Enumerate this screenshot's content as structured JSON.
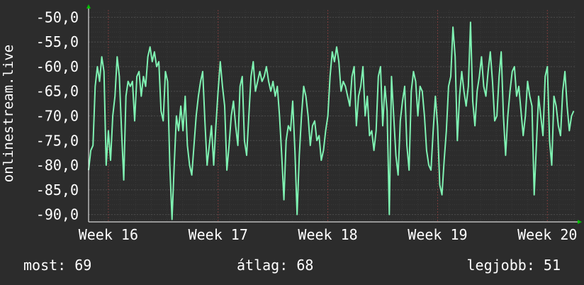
{
  "chart_data": {
    "type": "line",
    "ylabel": "onlinestream.live",
    "ylim": [
      -91.5,
      -48.5
    ],
    "yticks": [
      -50,
      -55,
      -60,
      -65,
      -70,
      -75,
      -80,
      -85,
      -90
    ],
    "ytick_labels": [
      "-50,0",
      "-55,0",
      "-60,0",
      "-65,0",
      "-70,0",
      "-75,0",
      "-80,0",
      "-85,0",
      "-90,0"
    ],
    "xlim": [
      15.82,
      20.25
    ],
    "xticks": [
      16,
      17,
      18,
      19,
      20
    ],
    "xtick_labels": [
      "Week 16",
      "Week 17",
      "Week 18",
      "Week 19",
      "Week 20"
    ],
    "grid": true,
    "colors": {
      "background": "#2c2c2c",
      "plot_background": "#2c2c2c",
      "line": "#7ff2b2",
      "grid": "#4a4a4a",
      "minor_grid": "#383838",
      "week_grid": "#7a3c3c",
      "axis": "#ffffff",
      "arrow": "#00c000",
      "text": "#ffffff"
    },
    "series": [
      {
        "values": [
          [
            15.82,
            -81
          ],
          [
            15.84,
            -77
          ],
          [
            15.86,
            -76
          ],
          [
            15.88,
            -64
          ],
          [
            15.9,
            -60
          ],
          [
            15.92,
            -63
          ],
          [
            15.94,
            -58
          ],
          [
            15.96,
            -61
          ],
          [
            15.98,
            -80
          ],
          [
            16.0,
            -73
          ],
          [
            16.02,
            -79
          ],
          [
            16.04,
            -70
          ],
          [
            16.06,
            -66
          ],
          [
            16.08,
            -58
          ],
          [
            16.1,
            -62
          ],
          [
            16.12,
            -73
          ],
          [
            16.14,
            -83
          ],
          [
            16.16,
            -66
          ],
          [
            16.18,
            -63
          ],
          [
            16.2,
            -64
          ],
          [
            16.22,
            -63
          ],
          [
            16.24,
            -71
          ],
          [
            16.26,
            -62
          ],
          [
            16.28,
            -61
          ],
          [
            16.3,
            -66
          ],
          [
            16.32,
            -62
          ],
          [
            16.34,
            -64
          ],
          [
            16.36,
            -58
          ],
          [
            16.38,
            -56
          ],
          [
            16.4,
            -59
          ],
          [
            16.42,
            -57
          ],
          [
            16.44,
            -60
          ],
          [
            16.46,
            -59
          ],
          [
            16.48,
            -69
          ],
          [
            16.5,
            -71
          ],
          [
            16.52,
            -61
          ],
          [
            16.54,
            -63
          ],
          [
            16.56,
            -80
          ],
          [
            16.58,
            -91
          ],
          [
            16.6,
            -80
          ],
          [
            16.62,
            -70
          ],
          [
            16.64,
            -73
          ],
          [
            16.66,
            -68
          ],
          [
            16.68,
            -73
          ],
          [
            16.7,
            -66
          ],
          [
            16.72,
            -76
          ],
          [
            16.74,
            -80
          ],
          [
            16.76,
            -82
          ],
          [
            16.78,
            -76
          ],
          [
            16.8,
            -70
          ],
          [
            16.82,
            -66
          ],
          [
            16.84,
            -63
          ],
          [
            16.86,
            -61
          ],
          [
            16.88,
            -71
          ],
          [
            16.9,
            -80
          ],
          [
            16.92,
            -76
          ],
          [
            16.94,
            -72
          ],
          [
            16.96,
            -80
          ],
          [
            16.98,
            -72
          ],
          [
            17.0,
            -65
          ],
          [
            17.02,
            -59
          ],
          [
            17.04,
            -64
          ],
          [
            17.06,
            -68
          ],
          [
            17.08,
            -81
          ],
          [
            17.1,
            -76
          ],
          [
            17.12,
            -70
          ],
          [
            17.14,
            -67
          ],
          [
            17.16,
            -72
          ],
          [
            17.18,
            -76
          ],
          [
            17.2,
            -64
          ],
          [
            17.22,
            -62
          ],
          [
            17.24,
            -75
          ],
          [
            17.26,
            -78
          ],
          [
            17.28,
            -70
          ],
          [
            17.3,
            -62
          ],
          [
            17.32,
            -59
          ],
          [
            17.34,
            -65
          ],
          [
            17.36,
            -63
          ],
          [
            17.38,
            -61
          ],
          [
            17.4,
            -63
          ],
          [
            17.42,
            -62
          ],
          [
            17.44,
            -60
          ],
          [
            17.46,
            -63
          ],
          [
            17.48,
            -65
          ],
          [
            17.5,
            -63
          ],
          [
            17.52,
            -66
          ],
          [
            17.54,
            -64
          ],
          [
            17.56,
            -70
          ],
          [
            17.58,
            -78
          ],
          [
            17.6,
            -87
          ],
          [
            17.62,
            -75
          ],
          [
            17.64,
            -72
          ],
          [
            17.66,
            -73
          ],
          [
            17.68,
            -67
          ],
          [
            17.7,
            -77
          ],
          [
            17.72,
            -90
          ],
          [
            17.74,
            -78
          ],
          [
            17.76,
            -70
          ],
          [
            17.78,
            -64
          ],
          [
            17.8,
            -66
          ],
          [
            17.82,
            -70
          ],
          [
            17.84,
            -76
          ],
          [
            17.86,
            -72
          ],
          [
            17.88,
            -71
          ],
          [
            17.9,
            -75
          ],
          [
            17.92,
            -74
          ],
          [
            17.94,
            -79
          ],
          [
            17.96,
            -77
          ],
          [
            17.98,
            -73
          ],
          [
            18.0,
            -70
          ],
          [
            18.02,
            -62
          ],
          [
            18.04,
            -57
          ],
          [
            18.06,
            -59
          ],
          [
            18.08,
            -56
          ],
          [
            18.1,
            -59
          ],
          [
            18.12,
            -65
          ],
          [
            18.14,
            -63
          ],
          [
            18.16,
            -64
          ],
          [
            18.18,
            -66
          ],
          [
            18.2,
            -68
          ],
          [
            18.22,
            -62
          ],
          [
            18.24,
            -60
          ],
          [
            18.26,
            -72
          ],
          [
            18.28,
            -66
          ],
          [
            18.3,
            -64
          ],
          [
            18.32,
            -60
          ],
          [
            18.34,
            -70
          ],
          [
            18.36,
            -66
          ],
          [
            18.38,
            -74
          ],
          [
            18.4,
            -73
          ],
          [
            18.42,
            -77
          ],
          [
            18.44,
            -73
          ],
          [
            18.46,
            -62
          ],
          [
            18.48,
            -60
          ],
          [
            18.5,
            -72
          ],
          [
            18.52,
            -64
          ],
          [
            18.54,
            -69
          ],
          [
            18.56,
            -90
          ],
          [
            18.58,
            -62
          ],
          [
            18.6,
            -70
          ],
          [
            18.62,
            -78
          ],
          [
            18.64,
            -82
          ],
          [
            18.66,
            -71
          ],
          [
            18.68,
            -67
          ],
          [
            18.7,
            -64
          ],
          [
            18.72,
            -76
          ],
          [
            18.74,
            -81
          ],
          [
            18.76,
            -65
          ],
          [
            18.78,
            -61
          ],
          [
            18.8,
            -63
          ],
          [
            18.82,
            -70
          ],
          [
            18.84,
            -64
          ],
          [
            18.86,
            -65
          ],
          [
            18.88,
            -70
          ],
          [
            18.9,
            -77
          ],
          [
            18.92,
            -80
          ],
          [
            18.94,
            -81
          ],
          [
            18.96,
            -73
          ],
          [
            18.98,
            -66
          ],
          [
            19.0,
            -72
          ],
          [
            19.02,
            -84
          ],
          [
            19.04,
            -86
          ],
          [
            19.06,
            -79
          ],
          [
            19.08,
            -73
          ],
          [
            19.1,
            -64
          ],
          [
            19.12,
            -62
          ],
          [
            19.14,
            -52
          ],
          [
            19.16,
            -58
          ],
          [
            19.18,
            -75
          ],
          [
            19.2,
            -66
          ],
          [
            19.22,
            -61
          ],
          [
            19.24,
            -65
          ],
          [
            19.26,
            -68
          ],
          [
            19.28,
            -64
          ],
          [
            19.3,
            -51
          ],
          [
            19.32,
            -67
          ],
          [
            19.34,
            -72
          ],
          [
            19.36,
            -65
          ],
          [
            19.38,
            -62
          ],
          [
            19.4,
            -58
          ],
          [
            19.42,
            -64
          ],
          [
            19.44,
            -66
          ],
          [
            19.46,
            -61
          ],
          [
            19.48,
            -57
          ],
          [
            19.5,
            -63
          ],
          [
            19.52,
            -71
          ],
          [
            19.54,
            -70
          ],
          [
            19.56,
            -62
          ],
          [
            19.58,
            -57
          ],
          [
            19.6,
            -70
          ],
          [
            19.62,
            -78
          ],
          [
            19.64,
            -70
          ],
          [
            19.66,
            -65
          ],
          [
            19.68,
            -61
          ],
          [
            19.7,
            -60
          ],
          [
            19.72,
            -66
          ],
          [
            19.74,
            -64
          ],
          [
            19.76,
            -69
          ],
          [
            19.78,
            -74
          ],
          [
            19.8,
            -70
          ],
          [
            19.82,
            -63
          ],
          [
            19.84,
            -66
          ],
          [
            19.86,
            -68
          ],
          [
            19.88,
            -86
          ],
          [
            19.9,
            -76
          ],
          [
            19.92,
            -66
          ],
          [
            19.94,
            -70
          ],
          [
            19.96,
            -74
          ],
          [
            19.98,
            -62
          ],
          [
            20.0,
            -60
          ],
          [
            20.02,
            -75
          ],
          [
            20.04,
            -80
          ],
          [
            20.06,
            -66
          ],
          [
            20.08,
            -68
          ],
          [
            20.1,
            -72
          ],
          [
            20.12,
            -74
          ],
          [
            20.14,
            -65
          ],
          [
            20.16,
            -61
          ],
          [
            20.18,
            -68
          ],
          [
            20.2,
            -73
          ],
          [
            20.22,
            -70
          ],
          [
            20.24,
            -69
          ]
        ]
      }
    ]
  },
  "stats": {
    "current_label": "most",
    "current_value": "69",
    "average_label": "átlag",
    "average_value": "68",
    "max_label": "legjobb",
    "max_value": "51"
  }
}
